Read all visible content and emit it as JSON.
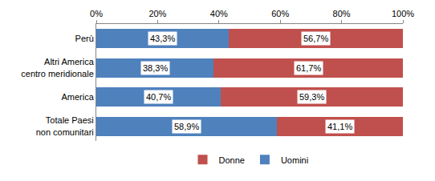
{
  "chart_data": {
    "type": "bar",
    "orientation": "horizontal",
    "stacked": true,
    "data_labels": true,
    "grid": false,
    "legend": "bottom",
    "categories": [
      "Perù",
      "Altri America centro meridionale",
      "America",
      "Totale Paesi non comunitari"
    ],
    "series": [
      {
        "name": "Uomini",
        "color": "#4f81bd",
        "values": [
          43.3,
          38.3,
          40.7,
          58.9
        ],
        "value_labels": [
          "43,3%",
          "38,3%",
          "40,7%",
          "58,9%"
        ]
      },
      {
        "name": "Donne",
        "color": "#c0504d",
        "values": [
          56.7,
          61.7,
          59.3,
          41.1
        ],
        "value_labels": [
          "56,7%",
          "61,7%",
          "59,3%",
          "41,1%"
        ]
      }
    ],
    "xlim": [
      0,
      100
    ],
    "xticks": [
      {
        "value": 0,
        "label": "0%"
      },
      {
        "value": 20,
        "label": "20%"
      },
      {
        "value": 40,
        "label": "40%"
      },
      {
        "value": 60,
        "label": "60%"
      },
      {
        "value": 80,
        "label": "80%"
      },
      {
        "value": 100,
        "label": "100%"
      }
    ]
  }
}
